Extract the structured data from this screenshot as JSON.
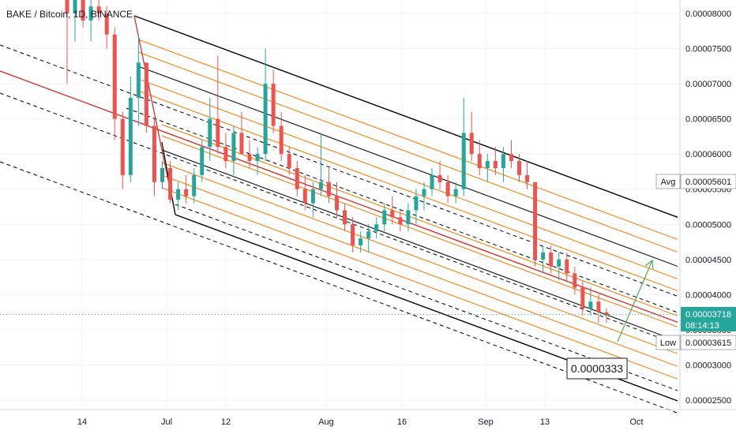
{
  "header": {
    "title": "BAKE / Bitcoin, 1D, BINANCE"
  },
  "colors": {
    "up": "#26a69a",
    "down": "#ef5350",
    "grid": "#f0f3fa",
    "channel_black": "#000000",
    "channel_orange": "#f57c00",
    "median_red": "#d32f2f",
    "arrow": "#4caf50",
    "price_tag": "#26a69a",
    "axis_text": "#131722"
  },
  "badges": {
    "avg_label": "Avg",
    "avg_value": "0.00005601",
    "low_label": "Low",
    "low_value": "0.00003615",
    "price_value": "0.00003718",
    "countdown": "08:14:13"
  },
  "annotation": {
    "target_text": "0.0000333"
  },
  "chart_data": {
    "type": "candlestick",
    "title": "BAKE / Bitcoin, 1D, BINANCE",
    "y_axis": {
      "position": "right",
      "ticks": [
        "0.00008000",
        "0.00007500",
        "0.00007000",
        "0.00006500",
        "0.00006000",
        "0.00005500",
        "0.00005000",
        "0.00004500",
        "0.00004000",
        "0.00003500",
        "0.00003000",
        "0.00002500"
      ],
      "ylim": [
        2.25e-05,
        8.2e-05
      ]
    },
    "x_axis": {
      "ticks": [
        "14",
        "Jul",
        "12",
        "Aug",
        "16",
        "Sep",
        "13",
        "Oct"
      ]
    },
    "grid": true,
    "current_price": 3.718e-05,
    "overlays": {
      "pitchfork_lines": "parallel descending channel with black, orange and dashed lines, red median",
      "projected_arrow": "green arrow rising toward 0.000045"
    }
  }
}
